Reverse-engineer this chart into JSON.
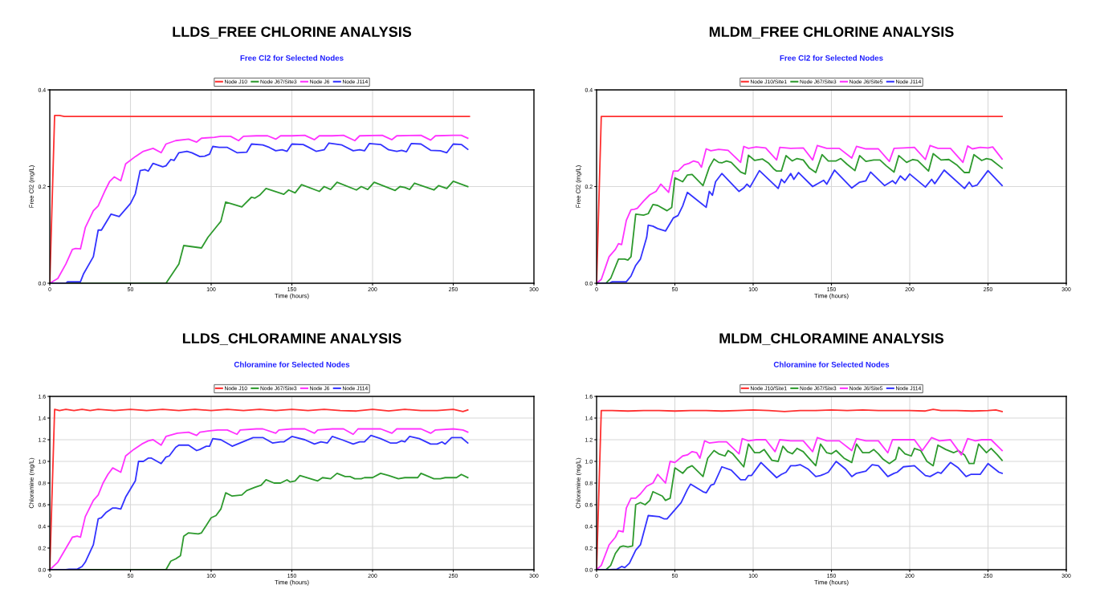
{
  "chart_data": [
    {
      "type": "line",
      "title": "LLDS_FREE CHLORINE ANALYSIS",
      "subtitle": "Free Cl2 for Selected Nodes",
      "xlabel": "Time (hours)",
      "ylabel": "Free Cl2 (mg/L)",
      "xlim": [
        0,
        300
      ],
      "xticks": [
        0,
        50,
        100,
        150,
        200,
        250,
        300
      ],
      "ylim": [
        0,
        0.4
      ],
      "yticks": [
        {
          "value": 0,
          "label": "0.0"
        },
        {
          "value": 0.2,
          "label": "0.2"
        },
        {
          "value": 0.4,
          "label": "0.4"
        }
      ],
      "grid": true,
      "legend": "top",
      "series": [
        {
          "name": "Node J10",
          "color": "#ff3030",
          "x": [
            0,
            3,
            6,
            9,
            260
          ],
          "values": [
            0,
            0.347,
            0.347,
            0.345,
            0.345
          ]
        },
        {
          "name": "Node J67/Site3",
          "color": "#2e9a2e",
          "x": [
            0,
            72,
            80,
            83,
            94,
            98,
            104,
            106,
            109,
            112,
            119,
            125,
            127,
            130,
            134,
            145,
            148,
            152,
            156,
            167,
            170,
            174,
            178,
            190,
            193,
            197,
            201,
            214,
            217,
            220,
            223,
            226,
            238,
            241,
            246,
            250,
            259
          ],
          "values": [
            0,
            0,
            0.04,
            0.078,
            0.073,
            0.095,
            0.12,
            0.128,
            0.168,
            0.165,
            0.158,
            0.178,
            0.176,
            0.182,
            0.196,
            0.184,
            0.193,
            0.187,
            0.204,
            0.19,
            0.2,
            0.194,
            0.209,
            0.193,
            0.2,
            0.194,
            0.209,
            0.192,
            0.2,
            0.198,
            0.194,
            0.207,
            0.193,
            0.202,
            0.196,
            0.211,
            0.2
          ]
        },
        {
          "name": "Node J6",
          "color": "#ff33ff",
          "x": [
            0,
            5,
            10,
            14,
            16,
            19,
            22,
            27,
            30,
            34,
            37,
            40,
            44,
            47,
            53,
            58,
            64,
            69,
            72,
            78,
            86,
            91,
            94,
            102,
            106,
            112,
            117,
            120,
            128,
            135,
            140,
            143,
            150,
            158,
            164,
            167,
            175,
            182,
            189,
            192,
            206,
            212,
            215,
            230,
            236,
            239,
            250,
            255,
            259
          ],
          "values": [
            0,
            0.01,
            0.04,
            0.07,
            0.072,
            0.071,
            0.115,
            0.15,
            0.16,
            0.19,
            0.21,
            0.22,
            0.212,
            0.247,
            0.262,
            0.273,
            0.279,
            0.27,
            0.288,
            0.295,
            0.298,
            0.292,
            0.3,
            0.302,
            0.304,
            0.304,
            0.295,
            0.304,
            0.305,
            0.305,
            0.298,
            0.305,
            0.305,
            0.306,
            0.297,
            0.305,
            0.305,
            0.306,
            0.295,
            0.305,
            0.306,
            0.297,
            0.305,
            0.306,
            0.296,
            0.305,
            0.306,
            0.306,
            0.3
          ]
        },
        {
          "name": "Node J114",
          "color": "#3333ff",
          "x": [
            0,
            10,
            11,
            19,
            21,
            27,
            30,
            32,
            38,
            43,
            50,
            53,
            56,
            59,
            61,
            64,
            70,
            72,
            75,
            77,
            80,
            85,
            88,
            93,
            96,
            99,
            101,
            105,
            110,
            116,
            122,
            125,
            132,
            136,
            140,
            144,
            147,
            150,
            157,
            160,
            165,
            170,
            173,
            181,
            188,
            192,
            195,
            198,
            205,
            210,
            215,
            218,
            221,
            224,
            230,
            236,
            242,
            246,
            250,
            255,
            259
          ],
          "values": [
            0,
            0,
            0.003,
            0.003,
            0.02,
            0.055,
            0.11,
            0.11,
            0.143,
            0.138,
            0.165,
            0.185,
            0.233,
            0.235,
            0.232,
            0.248,
            0.241,
            0.243,
            0.256,
            0.254,
            0.27,
            0.273,
            0.27,
            0.262,
            0.263,
            0.267,
            0.283,
            0.281,
            0.281,
            0.27,
            0.271,
            0.288,
            0.286,
            0.281,
            0.274,
            0.276,
            0.273,
            0.288,
            0.287,
            0.282,
            0.273,
            0.276,
            0.29,
            0.286,
            0.274,
            0.276,
            0.274,
            0.289,
            0.287,
            0.276,
            0.273,
            0.275,
            0.272,
            0.289,
            0.288,
            0.275,
            0.274,
            0.27,
            0.288,
            0.287,
            0.277
          ]
        }
      ]
    },
    {
      "type": "line",
      "title": "MLDM_FREE CHLORINE ANALYSIS",
      "subtitle": "Free Cl2 for Selected Nodes",
      "xlabel": "Time (hours)",
      "ylabel": "Free Cl2 (mg/L)",
      "xlim": [
        0,
        300
      ],
      "xticks": [
        0,
        50,
        100,
        150,
        200,
        250,
        300
      ],
      "ylim": [
        0,
        0.4
      ],
      "yticks": [
        {
          "value": 0,
          "label": "0.0"
        },
        {
          "value": 0.2,
          "label": "0.2"
        },
        {
          "value": 0.4,
          "label": "0.4"
        }
      ],
      "grid": true,
      "legend": "top",
      "series": [
        {
          "name": "Node J10/Site1",
          "color": "#ff3030",
          "x": [
            0,
            3,
            259
          ],
          "values": [
            0,
            0.345,
            0.345
          ]
        },
        {
          "name": "Node J67/Site3",
          "color": "#2e9a2e",
          "x": [
            0,
            6,
            9,
            14,
            18,
            20,
            22,
            25,
            30,
            33,
            36,
            39,
            45,
            48,
            50,
            55,
            58,
            61,
            68,
            72,
            75,
            78,
            80,
            83,
            86,
            92,
            95,
            97,
            101,
            106,
            110,
            113,
            115,
            118,
            121,
            125,
            128,
            132,
            136,
            140,
            144,
            148,
            153,
            156,
            160,
            165,
            168,
            172,
            177,
            181,
            185,
            190,
            193,
            198,
            202,
            205,
            212,
            215,
            220,
            225,
            230,
            235,
            238,
            241,
            246,
            249,
            252,
            259
          ],
          "values": [
            0,
            0,
            0.01,
            0.05,
            0.05,
            0.048,
            0.055,
            0.143,
            0.141,
            0.144,
            0.163,
            0.161,
            0.15,
            0.157,
            0.218,
            0.21,
            0.224,
            0.225,
            0.202,
            0.24,
            0.257,
            0.25,
            0.249,
            0.253,
            0.25,
            0.23,
            0.226,
            0.265,
            0.254,
            0.257,
            0.248,
            0.237,
            0.232,
            0.232,
            0.264,
            0.253,
            0.258,
            0.255,
            0.238,
            0.229,
            0.266,
            0.253,
            0.253,
            0.258,
            0.246,
            0.233,
            0.264,
            0.252,
            0.255,
            0.255,
            0.243,
            0.23,
            0.264,
            0.25,
            0.256,
            0.254,
            0.232,
            0.268,
            0.255,
            0.256,
            0.245,
            0.229,
            0.229,
            0.266,
            0.254,
            0.258,
            0.256,
            0.238
          ]
        },
        {
          "name": "Node J6/Site5",
          "color": "#ff33ff",
          "x": [
            0,
            3,
            8,
            12,
            14,
            16,
            19,
            22,
            24,
            26,
            30,
            34,
            38,
            41,
            46,
            49,
            52,
            56,
            59,
            62,
            65,
            67,
            70,
            73,
            78,
            84,
            92,
            94,
            97,
            102,
            108,
            115,
            117,
            124,
            132,
            138,
            141,
            147,
            155,
            163,
            166,
            172,
            180,
            187,
            190,
            196,
            203,
            210,
            213,
            218,
            226,
            234,
            237,
            240,
            245,
            250,
            253,
            259
          ],
          "values": [
            0,
            0.008,
            0.055,
            0.07,
            0.082,
            0.08,
            0.13,
            0.152,
            0.153,
            0.155,
            0.17,
            0.183,
            0.19,
            0.205,
            0.188,
            0.232,
            0.232,
            0.245,
            0.248,
            0.253,
            0.25,
            0.24,
            0.278,
            0.274,
            0.277,
            0.275,
            0.25,
            0.283,
            0.279,
            0.282,
            0.28,
            0.255,
            0.281,
            0.279,
            0.28,
            0.255,
            0.285,
            0.279,
            0.279,
            0.259,
            0.283,
            0.278,
            0.278,
            0.252,
            0.279,
            0.28,
            0.281,
            0.256,
            0.285,
            0.279,
            0.279,
            0.25,
            0.284,
            0.278,
            0.281,
            0.28,
            0.282,
            0.257
          ]
        },
        {
          "name": "Node J114",
          "color": "#3333ff",
          "x": [
            0,
            8,
            10,
            19,
            22,
            25,
            28,
            32,
            33,
            36,
            39,
            44,
            49,
            52,
            55,
            58,
            70,
            72,
            74,
            76,
            80,
            91,
            94,
            96,
            98,
            104,
            116,
            118,
            120,
            124,
            126,
            129,
            138,
            145,
            147,
            152,
            163,
            168,
            172,
            175,
            184,
            189,
            191,
            194,
            197,
            200,
            210,
            214,
            216,
            222,
            235,
            238,
            240,
            243,
            250,
            259
          ],
          "values": [
            0,
            0,
            0.003,
            0.003,
            0.015,
            0.037,
            0.05,
            0.095,
            0.12,
            0.118,
            0.113,
            0.108,
            0.135,
            0.14,
            0.16,
            0.188,
            0.157,
            0.19,
            0.182,
            0.21,
            0.227,
            0.19,
            0.197,
            0.205,
            0.199,
            0.233,
            0.196,
            0.215,
            0.208,
            0.227,
            0.215,
            0.229,
            0.2,
            0.213,
            0.205,
            0.234,
            0.197,
            0.209,
            0.212,
            0.23,
            0.202,
            0.212,
            0.206,
            0.222,
            0.213,
            0.226,
            0.199,
            0.215,
            0.206,
            0.234,
            0.196,
            0.209,
            0.2,
            0.203,
            0.233,
            0.202
          ]
        }
      ]
    },
    {
      "type": "line",
      "title": "LLDS_CHLORAMINE ANALYSIS",
      "subtitle": "Chloramine for Selected Nodes",
      "xlabel": "Time (hours)",
      "ylabel": "Chloramine (mg/L)",
      "xlim": [
        0,
        300
      ],
      "xticks": [
        0,
        50,
        100,
        150,
        200,
        250,
        300
      ],
      "ylim": [
        0,
        1.6
      ],
      "yticks": [
        {
          "value": 0,
          "label": "0.0"
        },
        {
          "value": 0.2,
          "label": "0.2"
        },
        {
          "value": 0.4,
          "label": "0.4"
        },
        {
          "value": 0.6,
          "label": "0.6"
        },
        {
          "value": 0.8,
          "label": "0.8"
        },
        {
          "value": 1.0,
          "label": "1.0"
        },
        {
          "value": 1.2,
          "label": "1.2"
        },
        {
          "value": 1.4,
          "label": "1.4"
        },
        {
          "value": 1.6,
          "label": "1.6"
        }
      ],
      "grid": true,
      "legend": "top",
      "series": [
        {
          "name": "Node J10",
          "color": "#ff3030",
          "x": [
            0,
            3,
            6,
            10,
            15,
            20,
            25,
            30,
            40,
            50,
            60,
            70,
            80,
            90,
            100,
            110,
            120,
            130,
            140,
            150,
            160,
            170,
            180,
            190,
            200,
            210,
            220,
            230,
            240,
            250,
            256,
            259
          ],
          "values": [
            0,
            1.48,
            1.47,
            1.48,
            1.47,
            1.48,
            1.47,
            1.48,
            1.47,
            1.48,
            1.47,
            1.48,
            1.47,
            1.48,
            1.47,
            1.48,
            1.47,
            1.48,
            1.47,
            1.48,
            1.47,
            1.48,
            1.47,
            1.465,
            1.48,
            1.465,
            1.48,
            1.47,
            1.47,
            1.48,
            1.46,
            1.475
          ]
        },
        {
          "name": "Node J67/Site3",
          "color": "#2e9a2e",
          "x": [
            0,
            72,
            75,
            78,
            81,
            83,
            86,
            92,
            94,
            100,
            103,
            106,
            109,
            113,
            119,
            122,
            127,
            131,
            134,
            139,
            143,
            147,
            149,
            152,
            155,
            166,
            169,
            174,
            178,
            183,
            186,
            189,
            193,
            195,
            200,
            205,
            210,
            216,
            220,
            228,
            230,
            238,
            242,
            245,
            252,
            255,
            259
          ],
          "values": [
            0,
            0,
            0.08,
            0.1,
            0.13,
            0.31,
            0.34,
            0.33,
            0.34,
            0.48,
            0.5,
            0.56,
            0.71,
            0.68,
            0.69,
            0.73,
            0.76,
            0.78,
            0.83,
            0.8,
            0.8,
            0.83,
            0.81,
            0.82,
            0.87,
            0.82,
            0.85,
            0.84,
            0.89,
            0.86,
            0.86,
            0.84,
            0.84,
            0.85,
            0.85,
            0.89,
            0.87,
            0.84,
            0.85,
            0.85,
            0.89,
            0.84,
            0.84,
            0.85,
            0.85,
            0.88,
            0.85
          ]
        },
        {
          "name": "Node J6",
          "color": "#ff33ff",
          "x": [
            0,
            5,
            14,
            17,
            19,
            22,
            27,
            30,
            33,
            36,
            39,
            44,
            47,
            52,
            57,
            61,
            64,
            69,
            72,
            79,
            86,
            91,
            93,
            98,
            104,
            110,
            116,
            118,
            128,
            132,
            140,
            142,
            150,
            158,
            164,
            166,
            175,
            182,
            188,
            191,
            205,
            212,
            215,
            230,
            236,
            239,
            250,
            256,
            259
          ],
          "values": [
            0,
            0.07,
            0.3,
            0.31,
            0.3,
            0.49,
            0.64,
            0.69,
            0.8,
            0.88,
            0.94,
            0.9,
            1.05,
            1.11,
            1.16,
            1.19,
            1.2,
            1.15,
            1.23,
            1.26,
            1.27,
            1.24,
            1.27,
            1.28,
            1.29,
            1.29,
            1.25,
            1.29,
            1.3,
            1.3,
            1.26,
            1.29,
            1.3,
            1.3,
            1.26,
            1.29,
            1.3,
            1.3,
            1.25,
            1.3,
            1.3,
            1.26,
            1.3,
            1.3,
            1.26,
            1.29,
            1.3,
            1.29,
            1.27
          ]
        },
        {
          "name": "Node J114",
          "color": "#3333ff",
          "x": [
            0,
            10,
            12,
            17,
            20,
            22,
            27,
            30,
            32,
            35,
            39,
            41,
            44,
            47,
            53,
            55,
            58,
            61,
            63,
            69,
            72,
            74,
            78,
            80,
            86,
            91,
            93,
            97,
            99,
            101,
            106,
            112,
            113,
            126,
            132,
            138,
            143,
            145,
            150,
            158,
            164,
            168,
            172,
            175,
            181,
            188,
            192,
            195,
            199,
            205,
            211,
            215,
            218,
            220,
            223,
            229,
            236,
            240,
            243,
            245,
            249,
            255,
            259
          ],
          "values": [
            0,
            0,
            0.005,
            0.005,
            0.03,
            0.07,
            0.23,
            0.47,
            0.48,
            0.53,
            0.57,
            0.57,
            0.56,
            0.67,
            0.82,
            1.0,
            1.0,
            1.03,
            1.03,
            0.98,
            1.04,
            1.05,
            1.13,
            1.15,
            1.15,
            1.1,
            1.11,
            1.14,
            1.14,
            1.21,
            1.2,
            1.15,
            1.14,
            1.22,
            1.22,
            1.17,
            1.18,
            1.18,
            1.23,
            1.2,
            1.16,
            1.18,
            1.17,
            1.23,
            1.2,
            1.16,
            1.18,
            1.18,
            1.24,
            1.21,
            1.17,
            1.17,
            1.19,
            1.18,
            1.23,
            1.21,
            1.16,
            1.16,
            1.18,
            1.16,
            1.22,
            1.22,
            1.17
          ]
        }
      ]
    },
    {
      "type": "line",
      "title": "MLDM_CHLORAMINE ANALYSIS",
      "subtitle": "Chloramine for Selected Nodes",
      "xlabel": "Time (hours)",
      "ylabel": "Chloramine (mg/L)",
      "xlim": [
        0,
        300
      ],
      "xticks": [
        0,
        50,
        100,
        150,
        200,
        250,
        300
      ],
      "ylim": [
        0,
        1.6
      ],
      "yticks": [
        {
          "value": 0,
          "label": "0.0"
        },
        {
          "value": 0.2,
          "label": "0.2"
        },
        {
          "value": 0.4,
          "label": "0.4"
        },
        {
          "value": 0.6,
          "label": "0.6"
        },
        {
          "value": 0.8,
          "label": "0.8"
        },
        {
          "value": 1.0,
          "label": "1.0"
        },
        {
          "value": 1.2,
          "label": "1.2"
        },
        {
          "value": 1.4,
          "label": "1.4"
        },
        {
          "value": 1.6,
          "label": "1.6"
        }
      ],
      "grid": true,
      "legend": "top",
      "series": [
        {
          "name": "Node J10/Site1",
          "color": "#ff3030",
          "x": [
            0,
            3,
            10,
            20,
            30,
            40,
            50,
            60,
            70,
            80,
            90,
            100,
            110,
            120,
            130,
            140,
            150,
            160,
            170,
            180,
            190,
            200,
            210,
            215,
            220,
            230,
            240,
            250,
            255,
            259
          ],
          "values": [
            0,
            1.47,
            1.47,
            1.465,
            1.47,
            1.47,
            1.465,
            1.47,
            1.47,
            1.465,
            1.47,
            1.475,
            1.47,
            1.46,
            1.47,
            1.47,
            1.475,
            1.47,
            1.475,
            1.47,
            1.47,
            1.47,
            1.465,
            1.48,
            1.47,
            1.47,
            1.465,
            1.47,
            1.475,
            1.46
          ]
        },
        {
          "name": "Node J67/Site3",
          "color": "#2e9a2e",
          "x": [
            0,
            6,
            9,
            12,
            15,
            17,
            20,
            23,
            25,
            28,
            31,
            34,
            36,
            42,
            44,
            47,
            50,
            55,
            58,
            61,
            68,
            71,
            75,
            78,
            82,
            84,
            87,
            94,
            97,
            101,
            104,
            107,
            112,
            116,
            119,
            122,
            125,
            128,
            132,
            135,
            140,
            143,
            147,
            150,
            153,
            158,
            163,
            166,
            170,
            174,
            177,
            180,
            183,
            187,
            191,
            193,
            197,
            201,
            203,
            207,
            211,
            215,
            218,
            223,
            228,
            231,
            235,
            238,
            241,
            244,
            249,
            252,
            256,
            259
          ],
          "values": [
            0,
            0,
            0.04,
            0.15,
            0.21,
            0.22,
            0.21,
            0.22,
            0.6,
            0.62,
            0.6,
            0.64,
            0.72,
            0.68,
            0.64,
            0.66,
            0.94,
            0.89,
            0.94,
            0.96,
            0.86,
            1.03,
            1.1,
            1.07,
            1.05,
            1.1,
            1.07,
            0.95,
            1.16,
            1.08,
            1.08,
            1.11,
            1.01,
            1.0,
            1.14,
            1.09,
            1.07,
            1.12,
            1.09,
            1.04,
            0.96,
            1.16,
            1.08,
            1.07,
            1.1,
            1.03,
            0.99,
            1.16,
            1.08,
            1.08,
            1.11,
            1.07,
            1.02,
            0.98,
            1.02,
            1.13,
            1.07,
            1.05,
            1.12,
            1.1,
            1.0,
            0.96,
            1.15,
            1.11,
            1.08,
            1.1,
            1.06,
            0.98,
            0.98,
            1.16,
            1.08,
            1.12,
            1.06,
            1.01
          ]
        },
        {
          "name": "Node J6/Site5",
          "color": "#ff33ff",
          "x": [
            0,
            3,
            8,
            12,
            14,
            17,
            19,
            22,
            25,
            28,
            32,
            36,
            39,
            44,
            47,
            50,
            55,
            58,
            61,
            64,
            66,
            69,
            72,
            78,
            83,
            91,
            93,
            97,
            102,
            108,
            114,
            117,
            124,
            132,
            138,
            141,
            147,
            155,
            163,
            166,
            172,
            180,
            186,
            189,
            196,
            203,
            208,
            214,
            219,
            226,
            233,
            237,
            242,
            246,
            252,
            259
          ],
          "values": [
            0,
            0.04,
            0.23,
            0.3,
            0.36,
            0.35,
            0.57,
            0.66,
            0.66,
            0.7,
            0.77,
            0.8,
            0.88,
            0.8,
            1.0,
            0.99,
            1.05,
            1.06,
            1.09,
            1.08,
            1.03,
            1.19,
            1.17,
            1.18,
            1.18,
            1.07,
            1.21,
            1.19,
            1.2,
            1.2,
            1.09,
            1.2,
            1.19,
            1.19,
            1.09,
            1.22,
            1.19,
            1.19,
            1.1,
            1.21,
            1.19,
            1.19,
            1.08,
            1.2,
            1.2,
            1.2,
            1.1,
            1.22,
            1.19,
            1.2,
            1.06,
            1.21,
            1.19,
            1.2,
            1.2,
            1.1
          ]
        },
        {
          "name": "Node J114",
          "color": "#3333ff",
          "x": [
            0,
            8,
            13,
            16,
            18,
            21,
            25,
            28,
            33,
            40,
            43,
            45,
            48,
            54,
            58,
            60,
            68,
            70,
            73,
            75,
            80,
            86,
            92,
            95,
            97,
            99,
            105,
            115,
            118,
            121,
            124,
            127,
            130,
            135,
            140,
            143,
            145,
            148,
            153,
            159,
            163,
            166,
            172,
            176,
            180,
            186,
            190,
            192,
            196,
            203,
            210,
            213,
            218,
            220,
            226,
            231,
            236,
            239,
            245,
            250,
            257,
            259
          ],
          "values": [
            0,
            0,
            0.005,
            0.03,
            0.02,
            0.06,
            0.18,
            0.23,
            0.5,
            0.49,
            0.47,
            0.47,
            0.52,
            0.62,
            0.74,
            0.79,
            0.72,
            0.71,
            0.78,
            0.79,
            0.95,
            0.92,
            0.83,
            0.83,
            0.87,
            0.87,
            0.99,
            0.85,
            0.88,
            0.9,
            0.96,
            0.96,
            0.97,
            0.93,
            0.86,
            0.87,
            0.88,
            0.9,
            1.0,
            0.93,
            0.86,
            0.89,
            0.91,
            0.97,
            0.96,
            0.86,
            0.89,
            0.9,
            0.95,
            0.96,
            0.87,
            0.86,
            0.9,
            0.89,
            0.99,
            0.94,
            0.86,
            0.88,
            0.88,
            0.98,
            0.9,
            0.89
          ]
        }
      ]
    }
  ]
}
